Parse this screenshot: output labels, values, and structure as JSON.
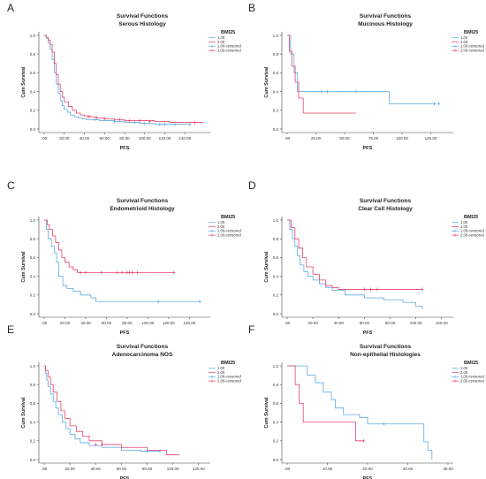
{
  "figure": {
    "colors": {
      "series1": "#5aa9e6",
      "series2": "#e8416a"
    }
  },
  "chart_data": [
    {
      "letter": "A",
      "type": "line",
      "step": true,
      "title": "Survival Functions",
      "subtitle": "Serous Histology",
      "xlabel": "PFS",
      "ylabel": "Cum Survival",
      "xlim": [
        0,
        160
      ],
      "ylim": [
        0,
        1
      ],
      "xticks": [
        ".00",
        "20.00",
        "40.00",
        "60.00",
        "80.00",
        "100.00",
        "120.00",
        "140.00"
      ],
      "xtick_values": [
        0,
        20,
        40,
        60,
        80,
        100,
        120,
        140
      ],
      "yticks": [
        "0.0",
        "0.2",
        "0.4",
        "0.6",
        "0.8",
        "1.0"
      ],
      "yticks_values": [
        0,
        0.2,
        0.4,
        0.6,
        0.8,
        1.0
      ],
      "legend_title": "BMI25",
      "legend": [
        "1.00",
        "2.00",
        "1.00-censored",
        "2.00-censored"
      ],
      "series": [
        {
          "name": "1.00",
          "color": "#5aa9e6",
          "x": [
            0,
            2,
            4,
            6,
            8,
            10,
            12,
            14,
            16,
            18,
            20,
            23,
            26,
            30,
            34,
            38,
            42,
            48,
            55,
            62,
            70,
            80,
            95,
            110,
            130,
            145
          ],
          "y": [
            1.0,
            0.97,
            0.92,
            0.85,
            0.74,
            0.6,
            0.48,
            0.38,
            0.3,
            0.25,
            0.21,
            0.18,
            0.15,
            0.13,
            0.12,
            0.11,
            0.1,
            0.1,
            0.09,
            0.09,
            0.08,
            0.07,
            0.06,
            0.05,
            0.05,
            0.05
          ],
          "censored_x": [
            50,
            70,
            90,
            100,
            115,
            120,
            130,
            145
          ],
          "censored_y": [
            0.1,
            0.08,
            0.07,
            0.06,
            0.05,
            0.05,
            0.05,
            0.05
          ]
        },
        {
          "name": "2.00",
          "color": "#e8416a",
          "x": [
            0,
            2,
            4,
            6,
            8,
            10,
            12,
            14,
            16,
            18,
            20,
            24,
            28,
            32,
            36,
            40,
            46,
            52,
            60,
            70,
            80,
            95,
            110,
            125,
            140,
            158
          ],
          "y": [
            1.0,
            0.98,
            0.95,
            0.9,
            0.82,
            0.7,
            0.58,
            0.48,
            0.4,
            0.34,
            0.29,
            0.24,
            0.2,
            0.17,
            0.15,
            0.14,
            0.13,
            0.12,
            0.11,
            0.1,
            0.09,
            0.09,
            0.08,
            0.07,
            0.07,
            0.07
          ],
          "censored_x": [
            44,
            52,
            60,
            75,
            85,
            95,
            105,
            150
          ],
          "censored_y": [
            0.13,
            0.12,
            0.11,
            0.1,
            0.09,
            0.09,
            0.08,
            0.07
          ]
        }
      ]
    },
    {
      "letter": "B",
      "type": "line",
      "step": true,
      "title": "Survival Functions",
      "subtitle": "Mucinous Histology",
      "xlabel": "PFS",
      "ylabel": "Cum Survival",
      "xlim": [
        0,
        140
      ],
      "ylim": [
        0,
        1
      ],
      "xticks": [
        ".00",
        "25.00",
        "50.00",
        "75.00",
        "100.00",
        "125.00"
      ],
      "xtick_values": [
        0,
        25,
        50,
        75,
        100,
        125
      ],
      "yticks": [
        "0.0",
        "0.2",
        "0.4",
        "0.6",
        "0.8",
        "1.0"
      ],
      "yticks_values": [
        0,
        0.2,
        0.4,
        0.6,
        0.8,
        1.0
      ],
      "legend_title": "BMI25",
      "legend": [
        "1.00",
        "2.00",
        "1.00-censored",
        "2.00-censored"
      ],
      "series": [
        {
          "name": "1.00",
          "color": "#5aa9e6",
          "x": [
            0,
            3,
            6,
            9,
            89,
            130
          ],
          "y": [
            1.0,
            0.8,
            0.6,
            0.4,
            0.27,
            0.27
          ],
          "censored_x": [
            30,
            35,
            60,
            128,
            132
          ],
          "censored_y": [
            0.4,
            0.4,
            0.4,
            0.27,
            0.27
          ]
        },
        {
          "name": "2.00",
          "color": "#e8416a",
          "x": [
            0,
            2,
            4,
            7,
            10,
            14,
            30,
            60
          ],
          "y": [
            1.0,
            0.83,
            0.67,
            0.5,
            0.33,
            0.17,
            0.17,
            0.17
          ],
          "censored_x": [],
          "censored_y": []
        }
      ]
    },
    {
      "letter": "C",
      "type": "line",
      "step": true,
      "title": "Survival Functions",
      "subtitle": "Endometrioid Histology",
      "xlabel": "PFS",
      "ylabel": "Cum Survival",
      "xlim": [
        0,
        155
      ],
      "ylim": [
        0,
        1
      ],
      "xticks": [
        ".00",
        "20.00",
        "40.00",
        "60.00",
        "80.00",
        "100.00",
        "120.00",
        "140.00"
      ],
      "xtick_values": [
        0,
        20,
        40,
        60,
        80,
        100,
        120,
        140
      ],
      "yticks": [
        "0.0",
        "0.2",
        "0.4",
        "0.6",
        "0.8",
        "1.0"
      ],
      "yticks_values": [
        0,
        0.2,
        0.4,
        0.6,
        0.8,
        1.0
      ],
      "legend_title": "BMI25",
      "legend": [
        "1.00",
        "2.00",
        "1.00-censored",
        "2.00-censored"
      ],
      "series": [
        {
          "name": "1.00",
          "color": "#5aa9e6",
          "x": [
            0,
            2,
            4,
            7,
            10,
            12,
            14,
            18,
            22,
            28,
            35,
            45,
            50,
            150
          ],
          "y": [
            1.0,
            0.9,
            0.8,
            0.72,
            0.65,
            0.55,
            0.4,
            0.3,
            0.27,
            0.24,
            0.2,
            0.17,
            0.13,
            0.13
          ],
          "censored_x": [
            110,
            150
          ],
          "censored_y": [
            0.13,
            0.13
          ]
        },
        {
          "name": "2.00",
          "color": "#e8416a",
          "x": [
            0,
            3,
            5,
            8,
            11,
            14,
            17,
            20,
            24,
            28,
            32,
            125
          ],
          "y": [
            1.0,
            0.95,
            0.9,
            0.83,
            0.76,
            0.68,
            0.6,
            0.55,
            0.5,
            0.47,
            0.44,
            0.44
          ],
          "censored_x": [
            35,
            40,
            55,
            70,
            75,
            80,
            82,
            85,
            90,
            125
          ],
          "censored_y": [
            0.44,
            0.44,
            0.44,
            0.44,
            0.44,
            0.44,
            0.44,
            0.44,
            0.44,
            0.44
          ]
        }
      ]
    },
    {
      "letter": "D",
      "type": "line",
      "step": true,
      "title": "Survival Functions",
      "subtitle": "Clear Cell Histology",
      "xlabel": "PFS",
      "ylabel": "Cum Survival",
      "xlim": [
        0,
        125
      ],
      "ylim": [
        0,
        1
      ],
      "xticks": [
        ".00",
        "20.00",
        "40.00",
        "60.00",
        "80.00",
        "100.00",
        "120.00"
      ],
      "xtick_values": [
        0,
        20,
        40,
        60,
        80,
        100,
        120
      ],
      "yticks": [
        "0.0",
        "0.2",
        "0.4",
        "0.6",
        "0.8",
        "1.0"
      ],
      "yticks_values": [
        0,
        0.2,
        0.4,
        0.6,
        0.8,
        1.0
      ],
      "legend_title": "BMI25",
      "legend": [
        "1.00",
        "2.00",
        "1.00-censored",
        "2.00-censored"
      ],
      "series": [
        {
          "name": "1.00",
          "color": "#5aa9e6",
          "x": [
            0,
            2,
            4,
            6,
            8,
            10,
            13,
            16,
            20,
            25,
            30,
            35,
            45,
            60,
            75,
            90,
            100,
            105
          ],
          "y": [
            1.0,
            0.9,
            0.8,
            0.72,
            0.62,
            0.52,
            0.45,
            0.4,
            0.36,
            0.32,
            0.28,
            0.25,
            0.2,
            0.17,
            0.15,
            0.12,
            0.08,
            0.05
          ],
          "censored_x": [],
          "censored_y": []
        },
        {
          "name": "2.00",
          "color": "#e8416a",
          "x": [
            0,
            3,
            6,
            9,
            12,
            15,
            20,
            25,
            30,
            35,
            40,
            105
          ],
          "y": [
            1.0,
            0.92,
            0.8,
            0.7,
            0.6,
            0.5,
            0.42,
            0.36,
            0.3,
            0.28,
            0.26,
            0.26
          ],
          "censored_x": [
            60,
            65,
            70,
            105
          ],
          "censored_y": [
            0.26,
            0.26,
            0.26,
            0.26
          ]
        }
      ]
    },
    {
      "letter": "E",
      "type": "line",
      "step": true,
      "title": "Survival Functions",
      "subtitle": "Adenocarcinoma NOS",
      "xlabel": "PFS",
      "ylabel": "Cum Survival",
      "xlim": [
        0,
        125
      ],
      "ylim": [
        0,
        1
      ],
      "xticks": [
        ".00",
        "20.00",
        "40.00",
        "60.00",
        "80.00",
        "100.00",
        "120.00"
      ],
      "xtick_values": [
        0,
        20,
        40,
        60,
        80,
        100,
        120
      ],
      "yticks": [
        "0.0",
        "0.2",
        "0.4",
        "0.6",
        "0.8",
        "1.0"
      ],
      "yticks_values": [
        0,
        0.2,
        0.4,
        0.6,
        0.8,
        1.0
      ],
      "legend_title": "BMI25",
      "legend": [
        "1.00",
        "2.00",
        "1.00-censored",
        "2.00-censored"
      ],
      "series": [
        {
          "name": "1.00",
          "color": "#5aa9e6",
          "x": [
            0,
            1,
            2,
            3,
            5,
            7,
            9,
            11,
            14,
            17,
            20,
            24,
            28,
            35,
            45,
            60,
            75,
            90
          ],
          "y": [
            1.0,
            0.92,
            0.85,
            0.78,
            0.7,
            0.62,
            0.55,
            0.48,
            0.4,
            0.33,
            0.27,
            0.22,
            0.18,
            0.15,
            0.13,
            0.1,
            0.09,
            0.09
          ],
          "censored_x": [
            80,
            90
          ],
          "censored_y": [
            0.09,
            0.09
          ]
        },
        {
          "name": "2.00",
          "color": "#e8416a",
          "x": [
            0,
            1,
            3,
            5,
            7,
            10,
            13,
            16,
            20,
            25,
            30,
            35,
            45,
            60,
            80,
            95,
            105
          ],
          "y": [
            1.0,
            0.95,
            0.88,
            0.8,
            0.72,
            0.62,
            0.52,
            0.44,
            0.36,
            0.3,
            0.25,
            0.2,
            0.16,
            0.13,
            0.1,
            0.05,
            0.05
          ],
          "censored_x": [
            40,
            45
          ],
          "censored_y": [
            0.16,
            0.16
          ]
        }
      ]
    },
    {
      "letter": "F",
      "type": "line",
      "step": true,
      "title": "Survival Functions",
      "subtitle": "Non-epithelial Histologies",
      "xlabel": "PFS",
      "ylabel": "Cum Survival",
      "xlim": [
        0,
        40
      ],
      "ylim": [
        0,
        1
      ],
      "xticks": [
        ".00",
        "10.00",
        "20.00",
        "30.00",
        "40.00"
      ],
      "xtick_values": [
        0,
        10,
        20,
        30,
        40
      ],
      "yticks": [
        "0.0",
        "0.2",
        "0.4",
        "0.6",
        "0.8",
        "1.0"
      ],
      "yticks_values": [
        0,
        0.2,
        0.4,
        0.6,
        0.8,
        1.0
      ],
      "legend_title": "BMI25",
      "legend": [
        "1.00",
        "2.00",
        "1.00-censored",
        "2.00-censored"
      ],
      "series": [
        {
          "name": "1.00",
          "color": "#5aa9e6",
          "x": [
            0,
            5,
            7,
            9,
            11,
            12,
            14,
            18,
            20,
            34,
            35,
            36
          ],
          "y": [
            1.0,
            0.9,
            0.82,
            0.72,
            0.64,
            0.55,
            0.48,
            0.45,
            0.38,
            0.19,
            0.1,
            0.0
          ],
          "censored_x": [
            24
          ],
          "censored_y": [
            0.38
          ]
        },
        {
          "name": "2.00",
          "color": "#e8416a",
          "x": [
            0,
            2,
            3,
            4,
            17,
            19
          ],
          "y": [
            1.0,
            0.8,
            0.6,
            0.4,
            0.2,
            0.2
          ],
          "censored_x": [
            19
          ],
          "censored_y": [
            0.2
          ]
        }
      ]
    }
  ]
}
